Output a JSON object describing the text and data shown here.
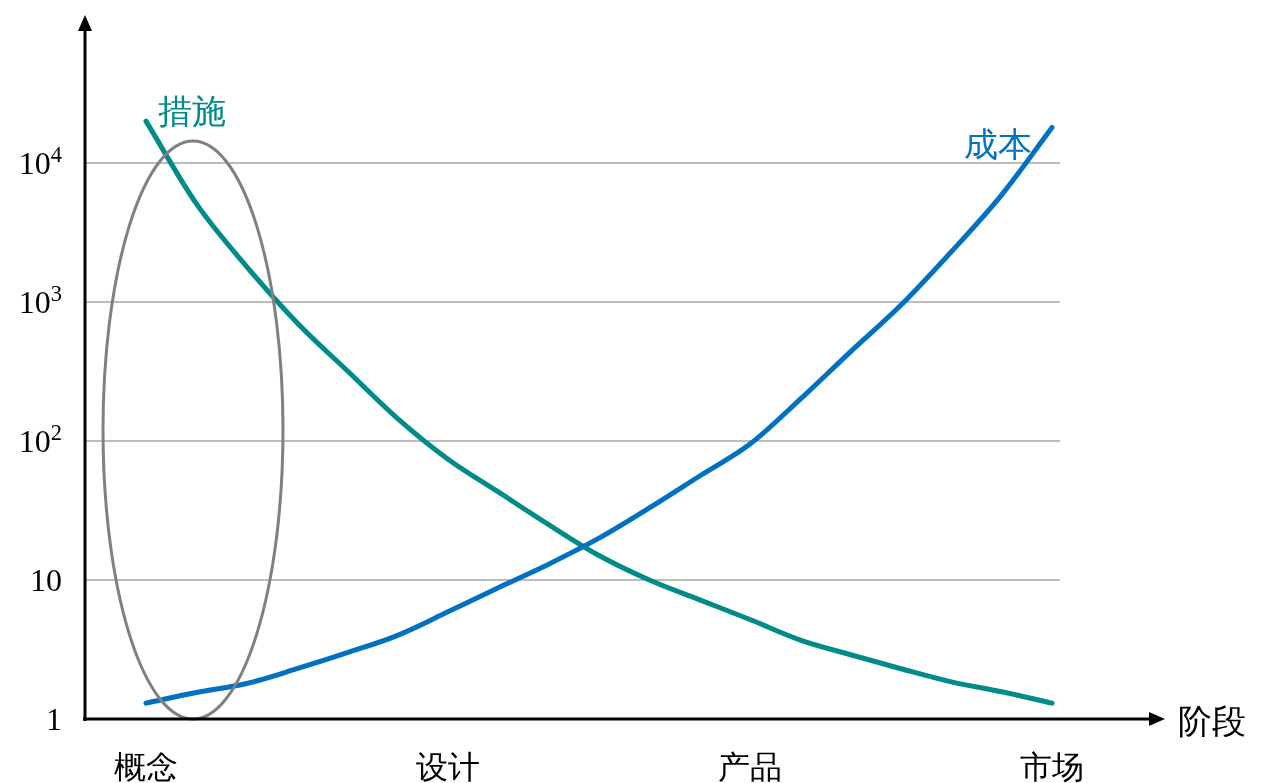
{
  "chart_data": {
    "type": "line",
    "xlabel": "阶段",
    "categories": [
      "概念",
      null,
      null,
      null,
      null,
      null,
      "设计",
      null,
      null,
      null,
      null,
      null,
      "产品",
      null,
      null,
      null,
      null,
      null,
      "市场"
    ],
    "log": "y",
    "ylim": [
      1,
      100000
    ],
    "yticks": [
      1,
      10,
      {
        "value": 100,
        "label": "10$^{2}$"
      },
      {
        "value": 1000,
        "label": "10$^{3}$"
      },
      {
        "value": 10000,
        "label": "10$^{4}$"
      }
    ],
    "grid": "y",
    "legend": false,
    "marker": "none",
    "line_style": "solid",
    "series": [
      {
        "name": "措施",
        "color": "#008b8b",
        "values": [
          20000,
          5100,
          1800,
          710,
          320,
          145,
          74,
          43,
          25,
          15,
          10,
          7.2,
          5.2,
          3.7,
          2.9,
          2.3,
          1.85,
          1.57,
          1.3
        ]
      },
      {
        "name": "成本",
        "color": "#0070c0",
        "values": [
          1.3,
          1.55,
          1.8,
          2.3,
          3.0,
          4.0,
          5.9,
          8.8,
          13,
          20,
          33,
          56,
          95,
          200,
          440,
          950,
          2300,
          5900,
          18000
        ]
      }
    ]
  }
}
